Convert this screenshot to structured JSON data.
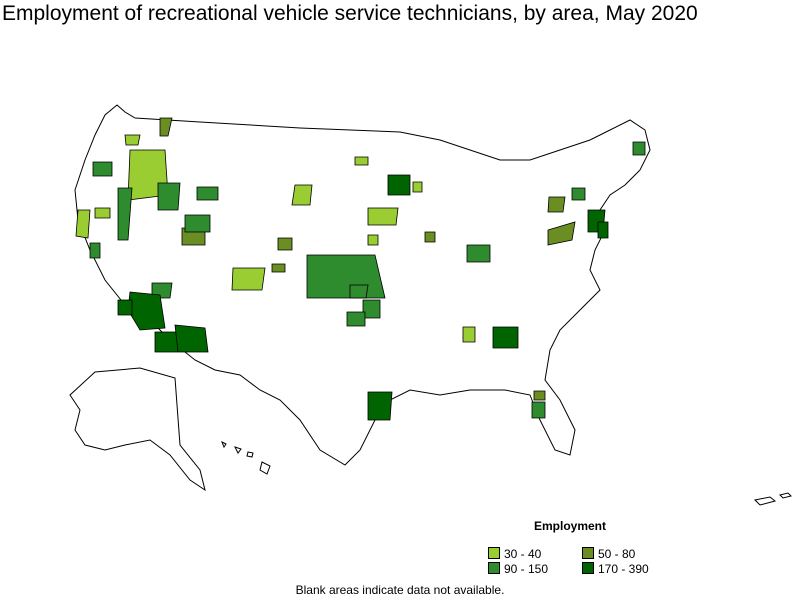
{
  "title": "Employment of recreational vehicle service technicians, by area, May 2020",
  "legend": {
    "title": "Employment",
    "items": [
      {
        "label": "30 - 40",
        "color": "#9acd32"
      },
      {
        "label": "50 - 80",
        "color": "#6b8e23"
      },
      {
        "label": "90 - 150",
        "color": "#2e8b2e"
      },
      {
        "label": "170 - 390",
        "color": "#006400"
      }
    ]
  },
  "note": "Blank areas indicate data not available."
}
